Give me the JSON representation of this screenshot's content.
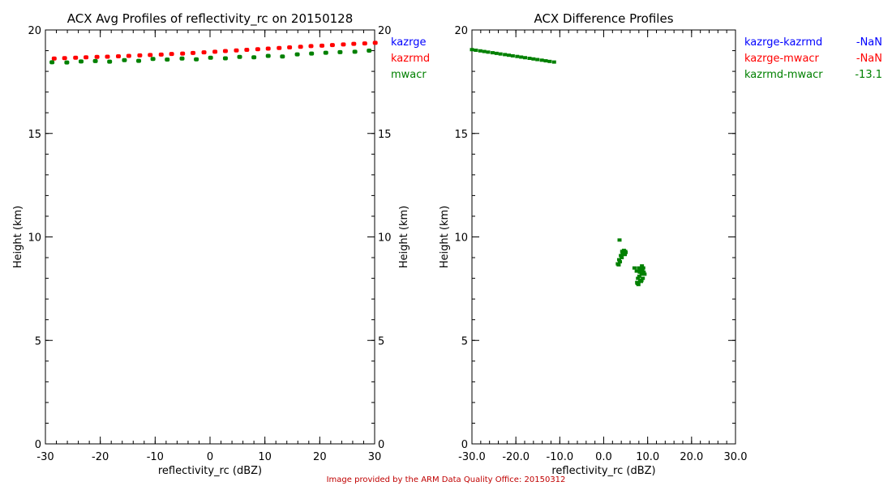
{
  "chart_data": [
    {
      "type": "scatter",
      "title": "ACX Avg Profiles of reflectivity_rc on 20150128",
      "xlabel": "reflectivity_rc (dBZ)",
      "ylabel": "Height (km)",
      "ylabel_right": "Height (km)",
      "xlim": [
        -30,
        30
      ],
      "ylim": [
        0,
        20
      ],
      "xticks": [
        "-30",
        "-20",
        "-10",
        "0",
        "10",
        "20",
        "30"
      ],
      "xtick_values": [
        -30,
        -20,
        -10,
        0,
        10,
        20,
        30
      ],
      "yticks": [
        "0",
        "5",
        "10",
        "15",
        "20"
      ],
      "ytick_values": [
        0,
        5,
        10,
        15,
        20
      ],
      "legend": [
        {
          "name": "kazrge",
          "color": "#0000ff"
        },
        {
          "name": "kazrmd",
          "color": "#ff0000"
        },
        {
          "name": "mwacr",
          "color": "#008000"
        }
      ],
      "series": [
        {
          "name": "kazrge",
          "color": "#0000ff",
          "x": [],
          "y": []
        },
        {
          "name": "kazrmd",
          "color": "#ff0000",
          "x": [
            -28.4,
            -26.5,
            -24.5,
            -22.6,
            -20.6,
            -18.7,
            -16.7,
            -14.8,
            -12.8,
            -10.9,
            -8.9,
            -7.0,
            -5.0,
            -3.1,
            -1.1,
            0.9,
            2.8,
            4.8,
            6.7,
            8.7,
            10.6,
            12.6,
            14.5,
            16.5,
            18.4,
            20.4,
            22.3,
            24.3,
            26.2,
            28.2,
            30.1
          ],
          "y": [
            18.62,
            18.64,
            18.66,
            18.68,
            18.7,
            18.71,
            18.73,
            18.75,
            18.77,
            18.79,
            18.81,
            18.84,
            18.86,
            18.89,
            18.92,
            18.95,
            18.98,
            19.01,
            19.04,
            19.07,
            19.1,
            19.13,
            19.16,
            19.19,
            19.22,
            19.24,
            19.27,
            19.3,
            19.33,
            19.35,
            19.38
          ]
        },
        {
          "name": "mwacr",
          "color": "#008000",
          "x": [
            -28.8,
            -26.1,
            -23.5,
            -20.9,
            -18.3,
            -15.6,
            -13.0,
            -10.4,
            -7.8,
            -5.1,
            -2.5,
            0.1,
            2.8,
            5.4,
            8.0,
            10.6,
            13.2,
            15.9,
            18.5,
            21.1,
            23.7,
            26.4,
            29.0
          ],
          "y": [
            18.44,
            18.43,
            18.48,
            18.5,
            18.47,
            18.54,
            18.51,
            18.6,
            18.57,
            18.62,
            18.58,
            18.66,
            18.63,
            18.7,
            18.68,
            18.75,
            18.72,
            18.82,
            18.86,
            18.9,
            18.93,
            18.95,
            19.0
          ]
        }
      ]
    },
    {
      "type": "scatter",
      "title": "ACX Difference Profiles",
      "xlabel": "reflectivity_rc (dBZ)",
      "ylabel": "Height (km)",
      "xlim": [
        -30,
        30
      ],
      "ylim": [
        0,
        20
      ],
      "xticks": [
        "-30.0",
        "-20.0",
        "-10.0",
        "0.0",
        "10.0",
        "20.0",
        "30.0"
      ],
      "xtick_values": [
        -30,
        -20,
        -10,
        0,
        10,
        20,
        30
      ],
      "yticks": [
        "0",
        "5",
        "10",
        "15",
        "20"
      ],
      "ytick_values": [
        0,
        5,
        10,
        15,
        20
      ],
      "legend": [
        {
          "name": "kazrge-kazrmd",
          "value": "-NaN",
          "color": "#0000ff"
        },
        {
          "name": "kazrge-mwacr",
          "value": "-NaN",
          "color": "#ff0000"
        },
        {
          "name": "kazrmd-mwacr",
          "value": "-13.1",
          "color": "#008000"
        }
      ],
      "series": [
        {
          "name": "kazrmd-mwacr line",
          "color": "#008000",
          "x": [
            -30.0,
            -29.1,
            -28.1,
            -27.2,
            -26.3,
            -25.3,
            -24.4,
            -23.5,
            -22.5,
            -21.6,
            -20.7,
            -19.7,
            -18.8,
            -17.9,
            -16.9,
            -16.0,
            -15.1,
            -14.1,
            -13.2,
            -12.3,
            -11.3
          ],
          "y": [
            19.05,
            19.02,
            18.99,
            18.96,
            18.93,
            18.9,
            18.87,
            18.84,
            18.81,
            18.78,
            18.75,
            18.72,
            18.69,
            18.66,
            18.63,
            18.6,
            18.57,
            18.54,
            18.51,
            18.48,
            18.45
          ]
        },
        {
          "name": "kazrmd-mwacr cluster",
          "color": "#008000",
          "x": [
            3.6,
            4.2,
            4.6,
            4.9,
            4.3,
            3.9,
            3.5,
            3.2,
            3.7,
            4.1,
            3.4,
            4.8,
            5.0,
            7.0,
            7.5,
            8.0,
            8.4,
            8.8,
            9.1,
            8.6,
            8.1,
            7.8,
            8.3,
            8.9,
            9.3,
            7.6,
            7.9,
            8.5,
            8.7,
            9.0,
            8.2,
            7.7,
            8.6
          ],
          "y": [
            9.85,
            9.3,
            9.35,
            9.3,
            9.2,
            9.1,
            8.9,
            8.7,
            8.8,
            9.0,
            8.65,
            9.15,
            9.25,
            8.5,
            8.35,
            8.5,
            8.45,
            8.4,
            8.3,
            8.2,
            8.1,
            8.0,
            7.9,
            8.0,
            8.2,
            7.8,
            7.7,
            7.85,
            8.6,
            8.5,
            8.3,
            7.75,
            7.9
          ]
        },
        {
          "name": "kazrge-kazrmd",
          "color": "#0000ff",
          "x": [],
          "y": []
        },
        {
          "name": "kazrge-mwacr",
          "color": "#ff0000",
          "x": [],
          "y": []
        }
      ]
    }
  ],
  "footer": "Image provided by the ARM Data Quality Office: 20150312"
}
